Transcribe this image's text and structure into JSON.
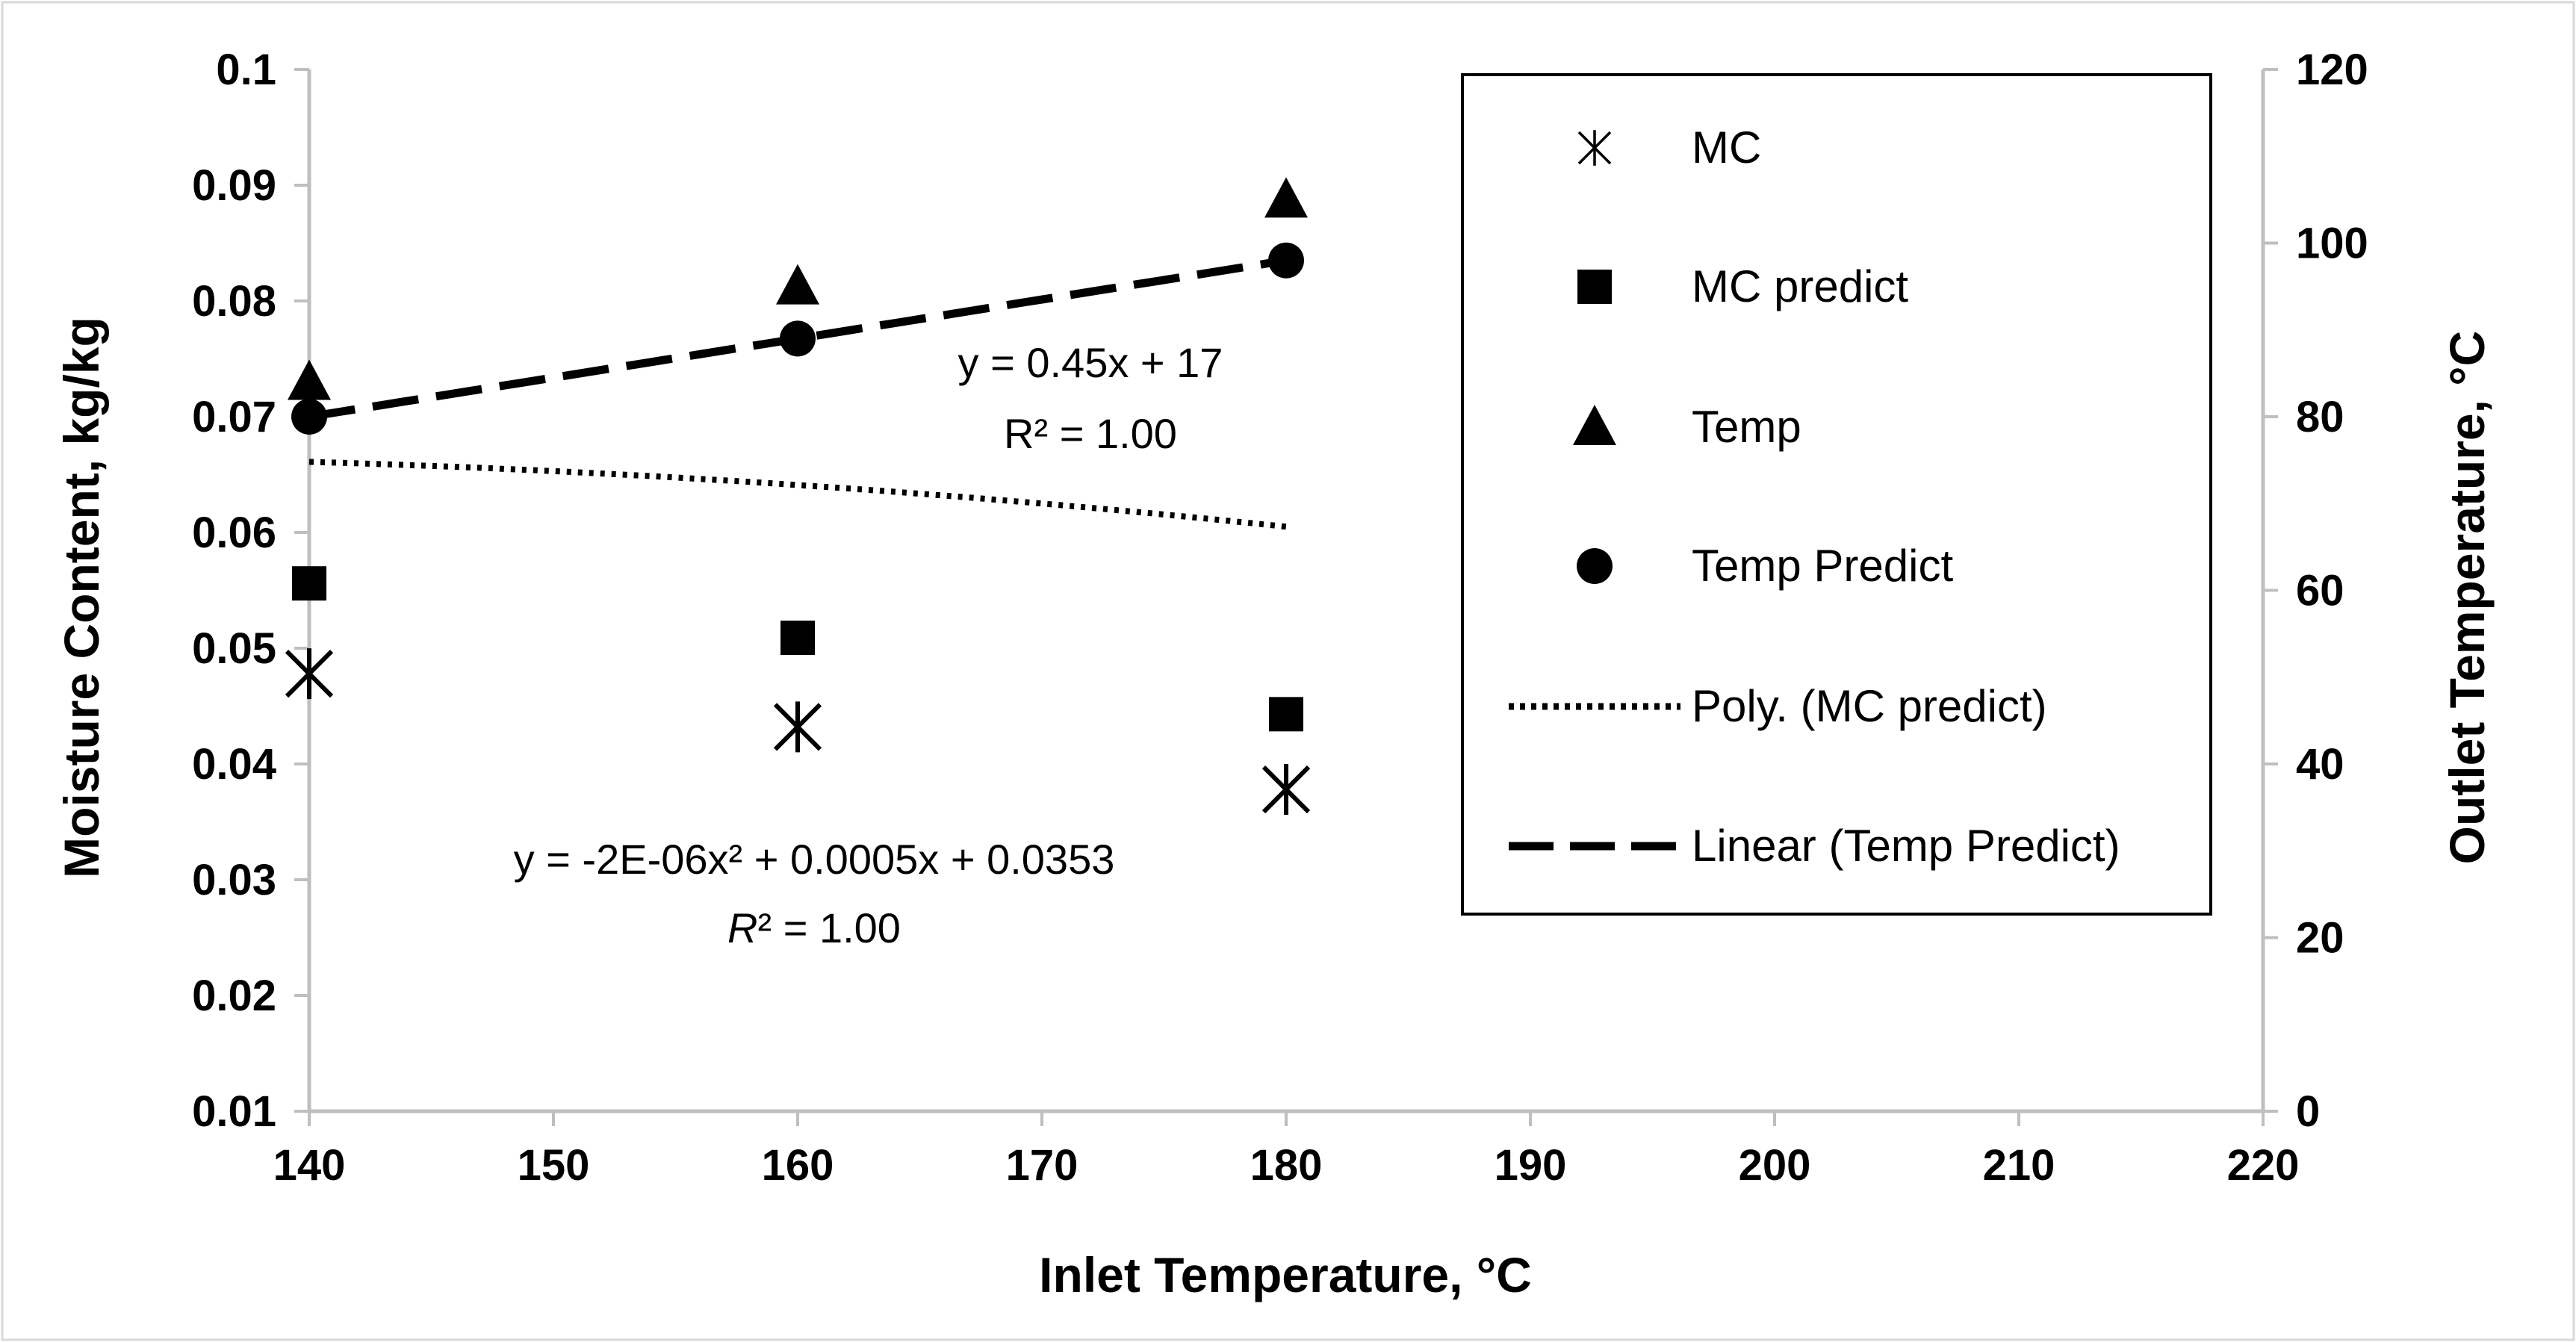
{
  "chart_data": {
    "type": "scatter",
    "xlabel": "Inlet Temperature, °C",
    "ylabel_left": "Moisture Content, kg/kg",
    "ylabel_right": "Outlet Temperature, °C",
    "xlim": [
      140,
      220
    ],
    "ylim_left": [
      0.01,
      0.1
    ],
    "ylim_right": [
      0,
      120
    ],
    "x_ticks": [
      "140",
      "150",
      "160",
      "170",
      "180",
      "190",
      "200",
      "210",
      "220"
    ],
    "y_left_ticks": [
      "0.01",
      "0.02",
      "0.03",
      "0.04",
      "0.05",
      "0.06",
      "0.07",
      "0.08",
      "0.09",
      "0.1"
    ],
    "y_right_ticks": [
      "0",
      "20",
      "40",
      "60",
      "80",
      "100",
      "120"
    ],
    "series": [
      {
        "name": "MC",
        "axis": "left",
        "marker": "asterisk",
        "x": [
          140,
          160,
          180
        ],
        "y": [
          0.0478,
          0.0432,
          0.0378
        ]
      },
      {
        "name": "MC predict",
        "axis": "left",
        "marker": "square",
        "x": [
          140,
          160,
          180
        ],
        "y": [
          0.0556,
          0.0509,
          0.0443
        ]
      },
      {
        "name": "Temp",
        "axis": "right",
        "marker": "triangle",
        "x": [
          140,
          160,
          180
        ],
        "y": [
          84,
          95,
          105
        ]
      },
      {
        "name": "Temp Predict",
        "axis": "right",
        "marker": "circle",
        "x": [
          140,
          160,
          180
        ],
        "y": [
          80,
          89,
          98
        ]
      }
    ],
    "trendlines": [
      {
        "name": "Poly. (MC predict)",
        "axis": "left",
        "style": "dotted",
        "kind": "poly2",
        "coeffs": [
          -2e-06,
          0.0005,
          0.0353
        ],
        "x_range": [
          140,
          180
        ]
      },
      {
        "name": "Linear (Temp Predict)",
        "axis": "right",
        "style": "dashed",
        "kind": "linear",
        "coeffs": [
          0.45,
          17
        ],
        "x_range": [
          140,
          180
        ]
      }
    ],
    "annotations": {
      "linear_eq": "y = 0.45x + 17",
      "linear_r2": "R² = 1.00",
      "poly_eq": "y = -2E-06x² + 0.0005x + 0.0353",
      "poly_r2_italic": "R",
      "poly_r2_rest": "² = 1.00"
    },
    "legend": {
      "position": "top-right",
      "entries": [
        "MC",
        "MC predict",
        "Temp",
        "Temp Predict",
        "Poly. (MC predict)",
        "Linear (Temp Predict)"
      ]
    }
  }
}
